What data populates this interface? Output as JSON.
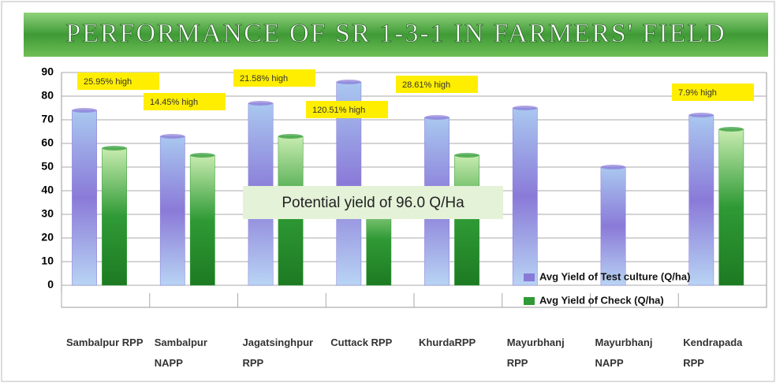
{
  "chart_data": {
    "type": "bar",
    "title": "PERFORMANCE OF SR 1-3-1 IN FARMERS' FIELD",
    "categories": [
      "Sambalpur RPP",
      "Sambalpur NAPP",
      "Jagatsinghpur RPP",
      "Cuttack RPP",
      "KhurdaRPP",
      "Mayurbhanj RPP",
      "Mayurbhanj NAPP",
      "Kendrapada RPP"
    ],
    "series": [
      {
        "name": "Avg Yield of Test culture (Q/ha)",
        "color": "#8a7ad8",
        "values": [
          74,
          63,
          77,
          86,
          71,
          75,
          50,
          72
        ]
      },
      {
        "name": "Avg Yield of Check (Q/ha)",
        "color": "#2f9a35",
        "values": [
          58,
          55,
          63,
          39,
          55,
          null,
          null,
          66
        ]
      }
    ],
    "annotations": [
      "25.95% high",
      "14.45% high",
      "21.58% high",
      "120.51% high",
      "28.61% high",
      "7.9% high"
    ],
    "note": "Potential yield of 96.0 Q/Ha",
    "ylim": [
      0,
      90
    ],
    "yticks": [
      0,
      10,
      20,
      30,
      40,
      50,
      60,
      70,
      80,
      90
    ],
    "grid": true,
    "legend": "lower right"
  }
}
